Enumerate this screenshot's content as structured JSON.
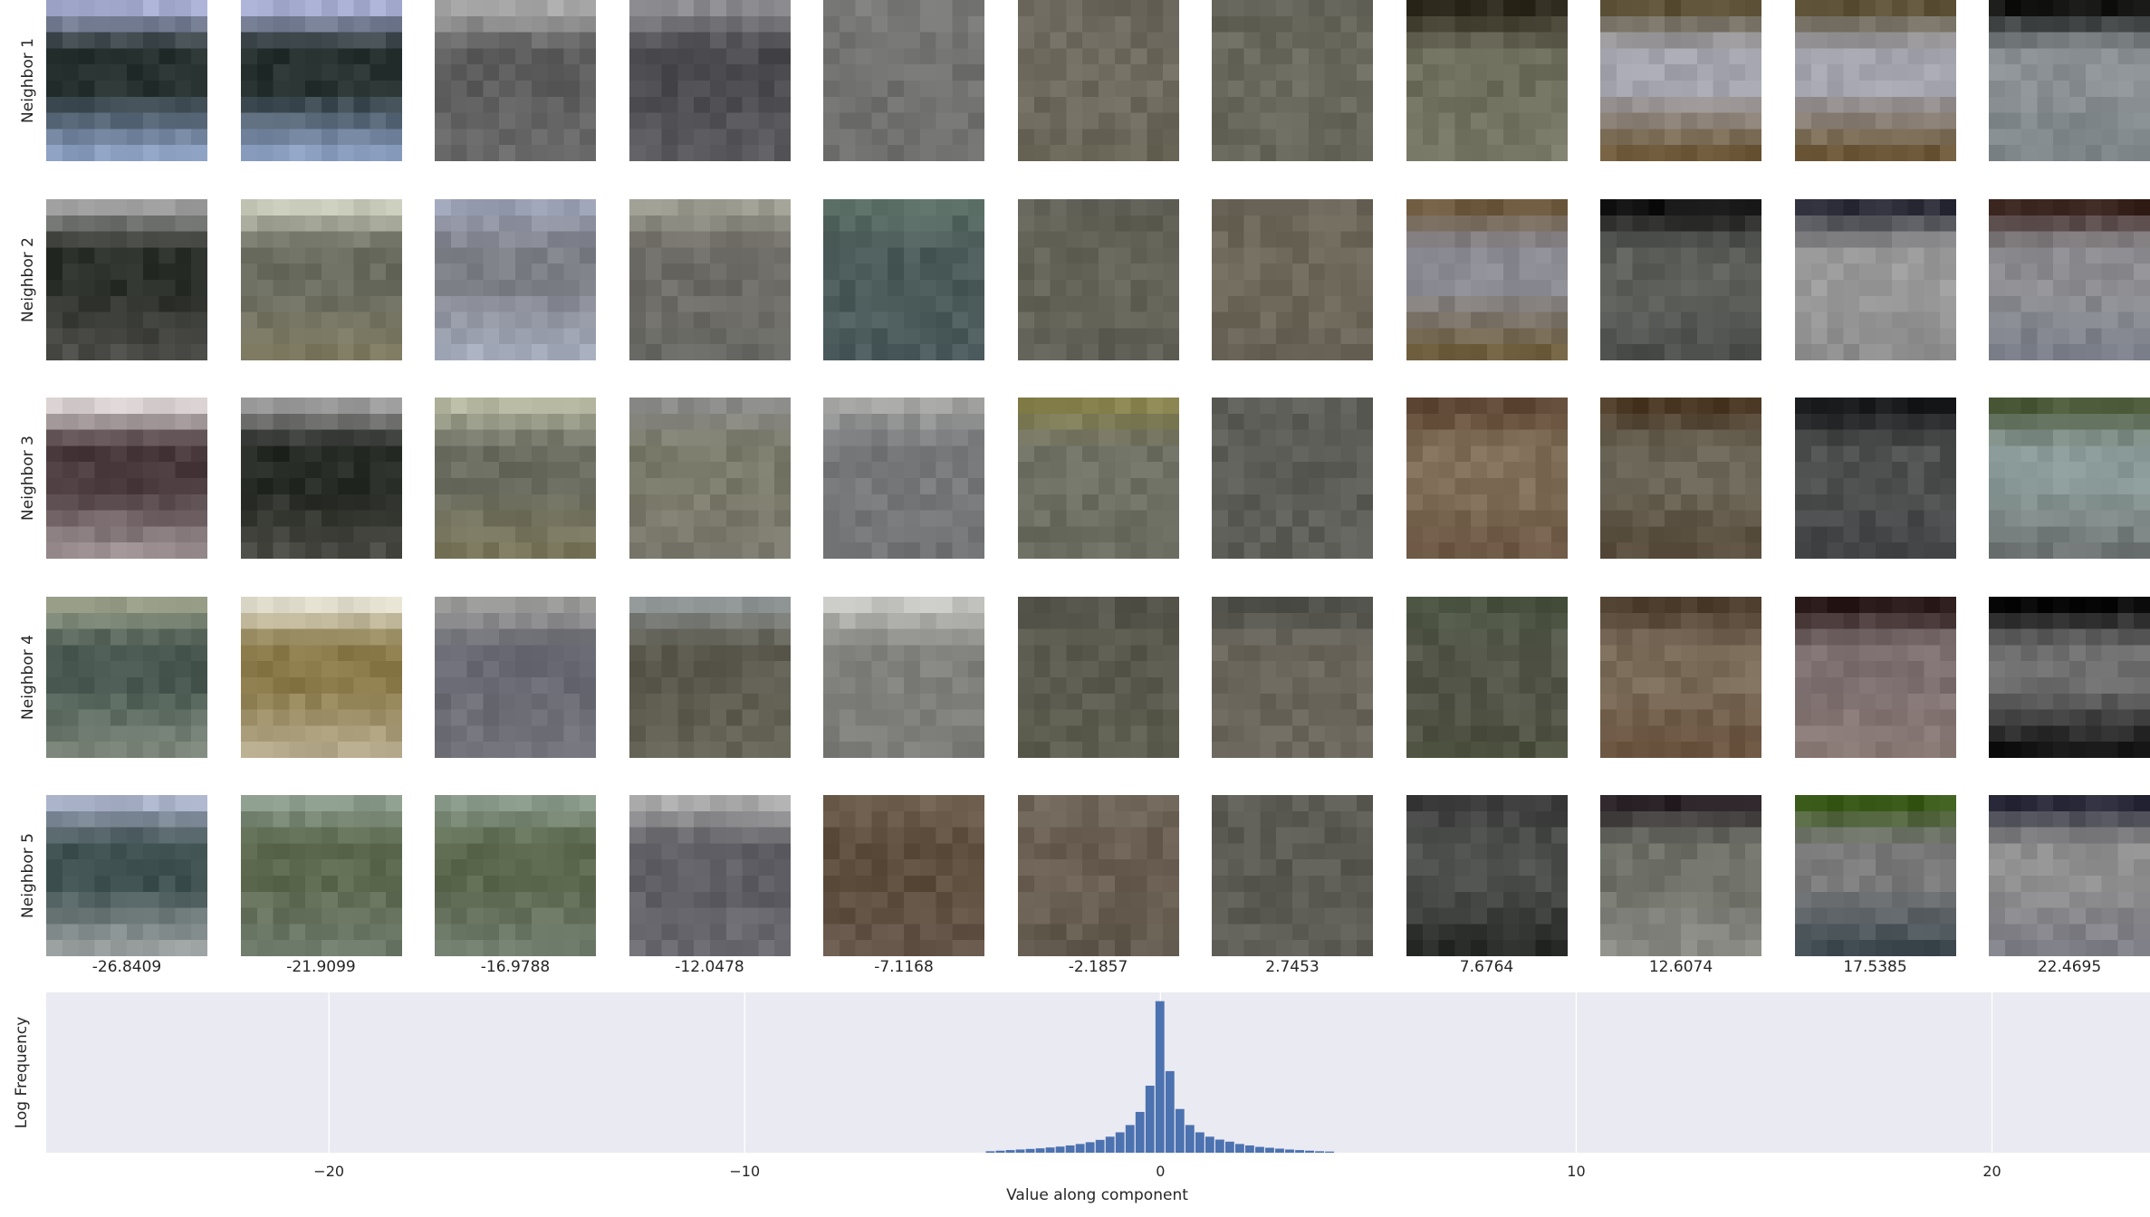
{
  "row_labels": [
    "Neighbor 1",
    "Neighbor 2",
    "Neighbor 3",
    "Neighbor 4",
    "Neighbor 5"
  ],
  "column_values": [
    "-26.8409",
    "-21.9099",
    "-16.9788",
    "-12.0478",
    "-7.1168",
    "-2.1857",
    "2.7453",
    "7.6764",
    "12.6074",
    "17.5385",
    "22.4695"
  ],
  "tiles": [
    [
      {
        "top": "#a5acd0",
        "mid": "#27312f",
        "bottom": "#8a9ec0"
      },
      {
        "top": "#a5acd0",
        "mid": "#27312f",
        "bottom": "#8a9ec0"
      },
      {
        "top": "#a8a8a8",
        "mid": "#5d5d5d",
        "bottom": "#6a6a6a"
      },
      {
        "top": "#8c8c90",
        "mid": "#4a4a4e",
        "bottom": "#5c5c60"
      },
      {
        "top": "#7a7a78",
        "mid": "#727270",
        "bottom": "#6e6e6c"
      },
      {
        "top": "#6a665c",
        "mid": "#6e6a5e",
        "bottom": "#6a6658"
      },
      {
        "top": "#626258",
        "mid": "#6a6a5e",
        "bottom": "#66665a"
      },
      {
        "top": "#2e2a1e",
        "mid": "#6e6e5c",
        "bottom": "#7a7a68"
      },
      {
        "top": "#5e5238",
        "mid": "#a4a4ae",
        "bottom": "#6e5a3a"
      },
      {
        "top": "#5e5238",
        "mid": "#a4a4ae",
        "bottom": "#6e5a3a"
      },
      {
        "top": "#141412",
        "mid": "#8a9094",
        "bottom": "#7c8488"
      }
    ],
    [
      {
        "top": "#9a9a9a",
        "mid": "#2c302a",
        "bottom": "#4a4a46"
      },
      {
        "top": "#c6c8b8",
        "mid": "#6a6c60",
        "bottom": "#7e7a62"
      },
      {
        "top": "#9aa0b4",
        "mid": "#7e8088",
        "bottom": "#a4acbc"
      },
      {
        "top": "#9a9a8e",
        "mid": "#6e6c66",
        "bottom": "#6a6a66"
      },
      {
        "top": "#5c7068",
        "mid": "#4c5c5a",
        "bottom": "#4c5c5e"
      },
      {
        "top": "#606056",
        "mid": "#646458",
        "bottom": "#606056"
      },
      {
        "top": "#6a6458",
        "mid": "#6e685a",
        "bottom": "#6a6458"
      },
      {
        "top": "#6e5a3e",
        "mid": "#8a8a92",
        "bottom": "#6e5e3e"
      },
      {
        "top": "#121212",
        "mid": "#5c5e5a",
        "bottom": "#4e504e"
      },
      {
        "top": "#2c2c38",
        "mid": "#9a9a9a",
        "bottom": "#8e8e8e"
      },
      {
        "top": "#3a241e",
        "mid": "#8e8e92",
        "bottom": "#7a7e88"
      }
    ],
    [
      {
        "top": "#d8d0d0",
        "mid": "#4a3a3e",
        "bottom": "#9a8e90"
      },
      {
        "top": "#9a9a9a",
        "mid": "#262a24",
        "bottom": "#4a4a44"
      },
      {
        "top": "#b4b6a0",
        "mid": "#6a6c60",
        "bottom": "#7a765c"
      },
      {
        "top": "#8a8a88",
        "mid": "#7a7a6a",
        "bottom": "#7c7a6e"
      },
      {
        "top": "#a2a2a0",
        "mid": "#76787a",
        "bottom": "#727476"
      },
      {
        "top": "#8a8450",
        "mid": "#6e7064",
        "bottom": "#6a6c60"
      },
      {
        "top": "#5e5e58",
        "mid": "#5e5e58",
        "bottom": "#5e5e58"
      },
      {
        "top": "#5e4634",
        "mid": "#806e58",
        "bottom": "#6e5a46"
      },
      {
        "top": "#4c3a26",
        "mid": "#6a6456",
        "bottom": "#5a4e3e"
      },
      {
        "top": "#16181a",
        "mid": "#4e5050",
        "bottom": "#444648"
      },
      {
        "top": "#4c5a3a",
        "mid": "#8a9a98",
        "bottom": "#6e7474"
      }
    ],
    [
      {
        "top": "#9aa08a",
        "mid": "#4a5a52",
        "bottom": "#7a8478"
      },
      {
        "top": "#e0dccc",
        "mid": "#8a7a4a",
        "bottom": "#b4a88a"
      },
      {
        "top": "#9a9a98",
        "mid": "#6a6a74",
        "bottom": "#74747c"
      },
      {
        "top": "#8a9090",
        "mid": "#5e5c50",
        "bottom": "#646254"
      },
      {
        "top": "#c4c4c0",
        "mid": "#80807c",
        "bottom": "#7c7c78"
      },
      {
        "top": "#54544a",
        "mid": "#5a5a4e",
        "bottom": "#5e5e50"
      },
      {
        "top": "#4e4e48",
        "mid": "#6a665c",
        "bottom": "#6a665c"
      },
      {
        "top": "#4a5440",
        "mid": "#54564a",
        "bottom": "#4e5240"
      },
      {
        "top": "#4a3a2a",
        "mid": "#7a6a58",
        "bottom": "#6a5440"
      },
      {
        "top": "#2a1a1a",
        "mid": "#7e7070",
        "bottom": "#8a7a76"
      },
      {
        "top": "#0c0c0c",
        "mid": "#6e6e6e",
        "bottom": "#141414"
      }
    ],
    [
      {
        "top": "#a8b0c8",
        "mid": "#3e5050",
        "bottom": "#9aa0a0"
      },
      {
        "top": "#8a9a8a",
        "mid": "#5e6a50",
        "bottom": "#6e7a6a"
      },
      {
        "top": "#8a9a8a",
        "mid": "#5e6a50",
        "bottom": "#6e7a6a"
      },
      {
        "top": "#aaaaaa",
        "mid": "#5e5e64",
        "bottom": "#6a6a70"
      },
      {
        "top": "#6e5e4e",
        "mid": "#5e4e3e",
        "bottom": "#66564a"
      },
      {
        "top": "#6e6458",
        "mid": "#6a5e52",
        "bottom": "#625a4e"
      },
      {
        "top": "#5e5e56",
        "mid": "#5a5a52",
        "bottom": "#5e5e56"
      },
      {
        "top": "#3a3a3a",
        "mid": "#4e504e",
        "bottom": "#2a2c2a"
      },
      {
        "top": "#2a2226",
        "mid": "#6e7068",
        "bottom": "#8a8a84"
      },
      {
        "top": "#3a5a1a",
        "mid": "#7a7a7a",
        "bottom": "#3e4a50"
      },
      {
        "top": "#2a2a3a",
        "mid": "#8e8e8e",
        "bottom": "#7e7e86"
      }
    ]
  ],
  "chart_data": {
    "type": "bar",
    "title": "",
    "xlabel": "Value along component",
    "ylabel": "Log Frequency",
    "xlim": [
      -26.8,
      23.8
    ],
    "ylim": [
      0,
      5.5
    ],
    "xticks": [
      -20,
      -10,
      0,
      10,
      20
    ],
    "xtick_labels": [
      "−20",
      "−10",
      "0",
      "10",
      "20"
    ],
    "grid": true,
    "bin_width": 0.24,
    "x": [
      -4.08,
      -3.84,
      -3.6,
      -3.36,
      -3.12,
      -2.88,
      -2.64,
      -2.4,
      -2.16,
      -1.92,
      -1.68,
      -1.44,
      -1.2,
      -0.96,
      -0.72,
      -0.48,
      -0.24,
      0.0,
      0.24,
      0.48,
      0.72,
      0.96,
      1.2,
      1.44,
      1.68,
      1.92,
      2.16,
      2.4,
      2.64,
      2.88,
      3.12,
      3.36,
      3.6,
      3.84,
      4.08
    ],
    "values": [
      0.05,
      0.07,
      0.09,
      0.11,
      0.13,
      0.15,
      0.18,
      0.21,
      0.25,
      0.3,
      0.36,
      0.44,
      0.55,
      0.7,
      0.95,
      1.4,
      2.3,
      5.2,
      2.8,
      1.5,
      0.95,
      0.7,
      0.55,
      0.45,
      0.38,
      0.3,
      0.25,
      0.2,
      0.17,
      0.14,
      0.11,
      0.09,
      0.07,
      0.05,
      0.04
    ],
    "bar_color": "#4c72b0",
    "background": "#eaeaf2"
  }
}
